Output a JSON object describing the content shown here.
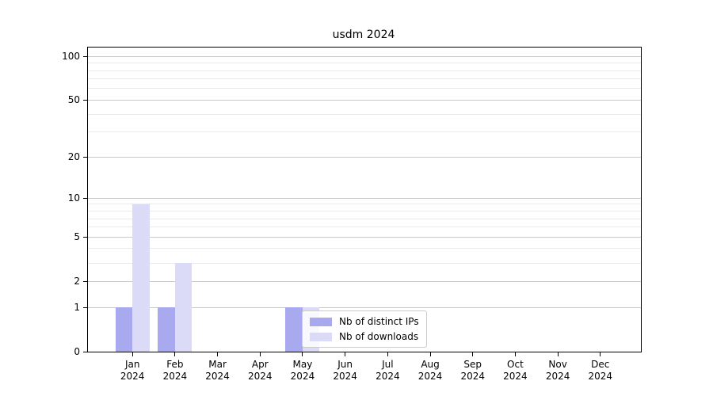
{
  "chart_data": {
    "type": "bar",
    "title": "usdm 2024",
    "categories": [
      "Jan",
      "Feb",
      "Mar",
      "Apr",
      "May",
      "Jun",
      "Jul",
      "Aug",
      "Sep",
      "Oct",
      "Nov",
      "Dec"
    ],
    "category_year": "2024",
    "series": [
      {
        "name": "Nb of distinct IPs",
        "color": "#a9a9f0",
        "values": [
          1,
          1,
          0,
          0,
          1,
          0,
          0,
          0,
          0,
          0,
          0,
          0
        ]
      },
      {
        "name": "Nb of downloads",
        "color": "#dbdbf7",
        "values": [
          9,
          3,
          0,
          0,
          1,
          0,
          0,
          0,
          0,
          0,
          0,
          0
        ]
      }
    ],
    "xlabel": "",
    "ylabel": "",
    "yscale": "log1p",
    "ylim": [
      0,
      115
    ],
    "y_major_ticks": [
      0,
      1,
      2,
      5,
      10,
      20,
      50,
      100
    ],
    "y_minor_ticks": [
      3,
      4,
      6,
      7,
      8,
      9,
      30,
      40,
      60,
      70,
      80,
      90
    ],
    "grid": "horizontal",
    "legend_position": "lower-center-overlay"
  },
  "colors": {
    "major_grid": "#c9c9c9",
    "minor_grid": "#e9e9e9",
    "spine": "#000000",
    "background": "#ffffff",
    "text": "#000000"
  }
}
